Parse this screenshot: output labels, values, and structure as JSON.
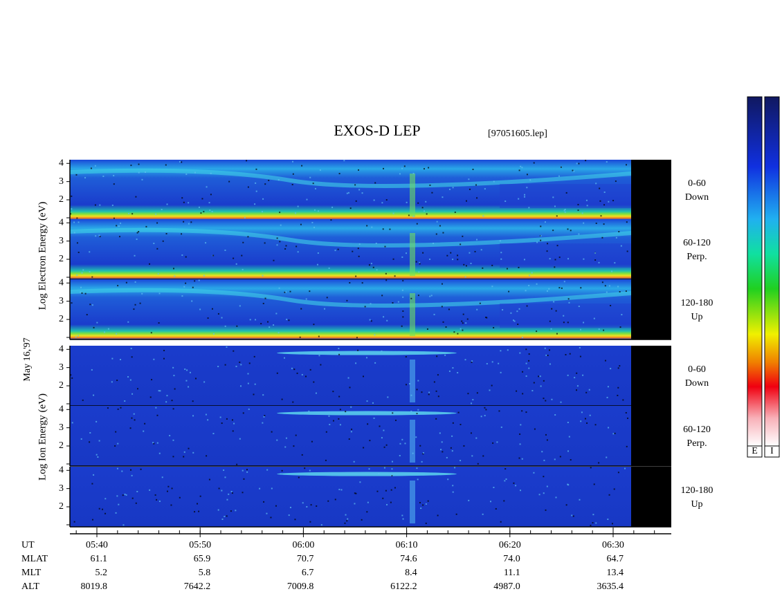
{
  "header": {
    "title": "EXOS-D LEP",
    "file": "[97051605.lep]"
  },
  "axis_labels": {
    "electron": "Log Electron Energy (eV)",
    "ion": "Log Ion Energy (eV)",
    "date": "May 16,'97"
  },
  "panels": [
    {
      "species": "electron",
      "pitch": "0-60",
      "direction": "Down"
    },
    {
      "species": "electron",
      "pitch": "60-120",
      "direction": "Perp."
    },
    {
      "species": "electron",
      "pitch": "120-180",
      "direction": "Up"
    },
    {
      "species": "ion",
      "pitch": "0-60",
      "direction": "Down"
    },
    {
      "species": "ion",
      "pitch": "60-120",
      "direction": "Perp."
    },
    {
      "species": "ion",
      "pitch": "120-180",
      "direction": "Up"
    }
  ],
  "energy_axis": {
    "ylim": [
      0.9,
      4.2
    ],
    "yticks": [
      2,
      3,
      4
    ]
  },
  "time_axis": {
    "labels": [
      "05:40",
      "05:50",
      "06:00",
      "06:10",
      "06:20",
      "06:30"
    ]
  },
  "orbit": {
    "rows": [
      {
        "label": "UT"
      },
      {
        "label": "MLAT",
        "values": [
          "61.1",
          "65.9",
          "70.7",
          "74.6",
          "74.0",
          "64.7"
        ]
      },
      {
        "label": "MLT",
        "values": [
          "5.2",
          "5.8",
          "6.7",
          "8.4",
          "11.1",
          "13.4"
        ]
      },
      {
        "label": "ALT",
        "values": [
          "8019.8",
          "7642.2",
          "7009.8",
          "6122.2",
          "4987.0",
          "3635.4"
        ]
      }
    ]
  },
  "colorbars": [
    "E",
    "I"
  ]
}
